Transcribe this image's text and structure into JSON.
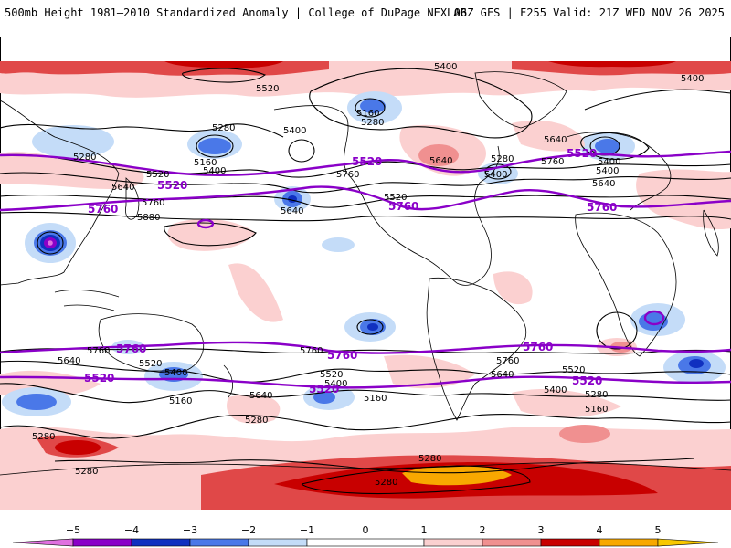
{
  "header": {
    "title": "500mb Height 1981–2010 Standardized Anomaly | College of DuPage NEXLAB",
    "run_info": "06Z GFS | F255 Valid: 21Z WED NOV 26 2025"
  },
  "colors": {
    "neg5": "#e070e0",
    "neg4": "#8a00c8",
    "neg3": "#1030c0",
    "neg2": "#4a78e8",
    "neg1": "#c4dcf8",
    "zero": "#ffffff",
    "pos1": "#fbd0d0",
    "pos2": "#f09090",
    "pos3": "#e04848",
    "pos4": "#c80000",
    "pos5": "#f8a800",
    "contour": "#000000",
    "highlight_contour": "#8a00c8"
  },
  "colorbar": {
    "ticks": [
      "−5",
      "−4",
      "−3",
      "−2",
      "−1",
      "0",
      "1",
      "2",
      "3",
      "4",
      "5"
    ]
  },
  "contour_labels": [
    {
      "text": "5400"
    },
    {
      "text": "5520"
    },
    {
      "text": "5400"
    },
    {
      "text": "5280"
    },
    {
      "text": "5160"
    },
    {
      "text": "5280"
    },
    {
      "text": "5400"
    },
    {
      "text": "5280"
    },
    {
      "text": "5160"
    },
    {
      "text": "5400"
    },
    {
      "text": "5520"
    },
    {
      "text": "5640"
    },
    {
      "text": "5760"
    },
    {
      "text": "5880"
    },
    {
      "text": "5640"
    },
    {
      "text": "5760"
    },
    {
      "text": "5520"
    },
    {
      "text": "5640"
    },
    {
      "text": "5400"
    },
    {
      "text": "5280"
    },
    {
      "text": "5760"
    },
    {
      "text": "5640"
    },
    {
      "text": "5400"
    },
    {
      "text": "5400"
    },
    {
      "text": "5640"
    },
    {
      "text": "5760"
    },
    {
      "text": "5640"
    },
    {
      "text": "5520"
    },
    {
      "text": "5400"
    },
    {
      "text": "5160"
    },
    {
      "text": "5280"
    },
    {
      "text": "5640"
    },
    {
      "text": "5760"
    },
    {
      "text": "5520"
    },
    {
      "text": "5400"
    },
    {
      "text": "5160"
    },
    {
      "text": "5640"
    },
    {
      "text": "5760"
    },
    {
      "text": "5520"
    },
    {
      "text": "5400"
    },
    {
      "text": "5280"
    },
    {
      "text": "5160"
    },
    {
      "text": "5280"
    },
    {
      "text": "5280"
    },
    {
      "text": "5280"
    },
    {
      "text": "5280"
    }
  ],
  "highlight_labels": [
    {
      "text": "5520"
    },
    {
      "text": "5760"
    },
    {
      "text": "5520"
    },
    {
      "text": "5760"
    },
    {
      "text": "5520"
    },
    {
      "text": "5760"
    },
    {
      "text": "5760"
    },
    {
      "text": "5520"
    },
    {
      "text": "5760"
    },
    {
      "text": "5520"
    },
    {
      "text": "5520"
    },
    {
      "text": "5760"
    }
  ]
}
